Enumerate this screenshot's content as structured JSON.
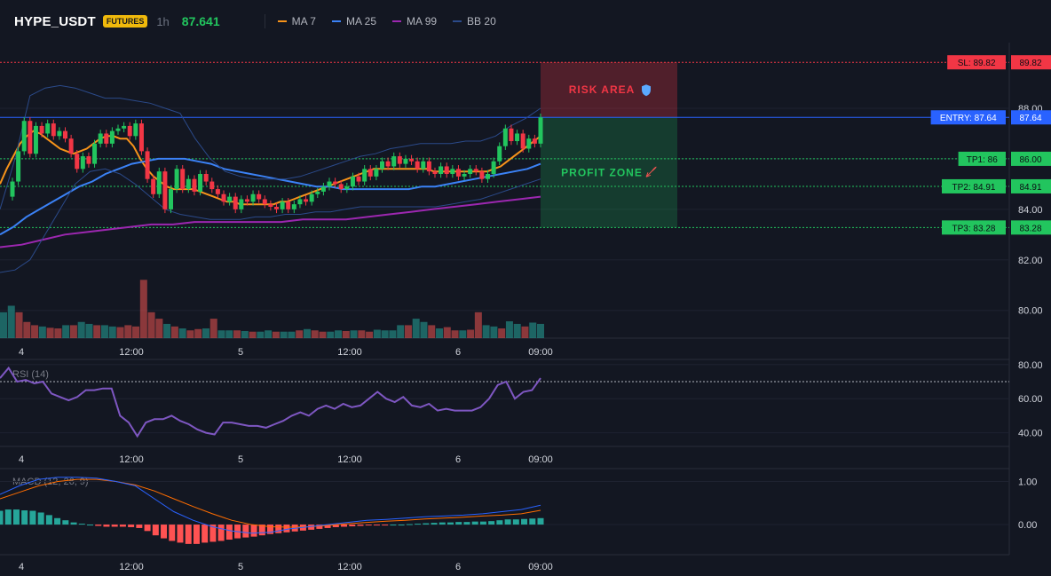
{
  "header": {
    "symbol": "HYPE_USDT",
    "badge": "FUTURES",
    "timeframe": "1h",
    "price": "87.641",
    "legend": [
      {
        "label": "MA 7",
        "color": "#f7931a"
      },
      {
        "label": "MA 25",
        "color": "#3b82f6"
      },
      {
        "label": "MA 99",
        "color": "#9c27b0"
      },
      {
        "label": "BB 20",
        "color": "#2b4a8a"
      }
    ]
  },
  "colors": {
    "background": "#131722",
    "up": "#26a69a",
    "down": "#ef5350",
    "candle_up": "#22c55e",
    "candle_down": "#f23645",
    "grid": "#1e2230",
    "axis_text": "#d1d4dc"
  },
  "chart_data": [
    {
      "type": "candlestick",
      "pane": "price",
      "time_labels": [
        "4",
        "12:00",
        "5",
        "12:00",
        "6",
        "09:00"
      ],
      "y_ticks": [
        "80.00",
        "82.00",
        "84.00",
        "86.00",
        "88.00"
      ],
      "ylim": [
        78.9,
        90.6
      ],
      "close": [
        85.1,
        86.3,
        87.5,
        86.2,
        87.3,
        87.0,
        87.4,
        86.9,
        87.1,
        86.8,
        86.2,
        85.6,
        86.1,
        85.8,
        86.6,
        87.0,
        86.6,
        87.1,
        87.2,
        87.3,
        86.9,
        87.4,
        86.3,
        85.2,
        84.6,
        85.5,
        84.0,
        84.8,
        85.6,
        84.8,
        85.2,
        84.7,
        85.4,
        85.1,
        84.8,
        84.6,
        84.3,
        84.5,
        84.0,
        84.4,
        84.3,
        84.6,
        84.4,
        84.2,
        84.1,
        84.0,
        84.3,
        84.0,
        84.2,
        84.4,
        84.3,
        84.6,
        84.7,
        84.9,
        85.1,
        85.0,
        84.8,
        84.9,
        85.3,
        85.1,
        85.6,
        85.3,
        85.6,
        85.9,
        85.7,
        86.1,
        85.8,
        86.0,
        85.9,
        85.6,
        85.9,
        85.5,
        85.4,
        85.7,
        85.4,
        85.6,
        85.3,
        85.4,
        85.6,
        85.5,
        85.2,
        85.4,
        85.9,
        86.5,
        87.2,
        86.7,
        87.0,
        86.4,
        86.8,
        86.6,
        87.64
      ],
      "indicators": [
        {
          "name": "MA 7",
          "color": "#f7931a",
          "values": [
            85.0,
            85.6,
            86.1,
            86.6,
            86.9,
            87.1,
            87.0,
            86.8,
            86.6,
            86.4,
            86.3,
            86.2,
            86.3,
            86.4,
            86.6,
            86.8,
            86.9,
            86.9,
            86.8,
            86.8,
            86.5,
            86.0,
            85.6,
            85.3,
            85.1,
            84.9,
            84.8,
            84.8,
            84.8,
            84.8,
            84.7,
            84.6,
            84.5,
            84.4,
            84.3,
            84.3,
            84.2,
            84.2,
            84.2,
            84.2,
            84.2,
            84.2,
            84.3,
            84.3,
            84.4,
            84.5,
            84.6,
            84.7,
            84.8,
            84.9,
            85.0,
            85.1,
            85.2,
            85.3,
            85.4,
            85.5,
            85.6,
            85.6,
            85.6,
            85.6,
            85.6,
            85.6,
            85.6,
            85.6,
            85.6,
            85.5,
            85.5,
            85.5,
            85.5,
            85.5,
            85.5,
            85.5,
            85.5,
            85.5,
            85.6,
            85.7,
            85.9,
            86.1,
            86.3,
            86.5,
            86.7,
            86.9
          ]
        },
        {
          "name": "MA 25",
          "color": "#3b82f6",
          "values": [
            83.0,
            83.3,
            83.7,
            84.0,
            84.3,
            84.6,
            84.9,
            85.1,
            85.4,
            85.6,
            85.8,
            85.9,
            86.0,
            86.0,
            86.0,
            85.9,
            85.8,
            85.6,
            85.5,
            85.4,
            85.3,
            85.2,
            85.1,
            85.0,
            84.9,
            84.9,
            84.8,
            84.8,
            84.8,
            84.8,
            84.8,
            84.8,
            84.9,
            84.9,
            85.0,
            85.1,
            85.2,
            85.3,
            85.4,
            85.5,
            85.6,
            85.8
          ]
        },
        {
          "name": "MA 99",
          "color": "#9c27b0",
          "values": [
            82.5,
            82.6,
            82.8,
            83.0,
            83.1,
            83.2,
            83.3,
            83.4,
            83.4,
            83.5,
            83.5,
            83.5,
            83.5,
            83.5,
            83.6,
            83.6,
            83.6,
            83.7,
            83.8,
            83.9,
            84.0,
            84.1,
            84.2,
            84.3,
            84.4,
            84.5
          ]
        },
        {
          "name": "BB 20 upper",
          "color": "#2b4a8a",
          "values": [
            84.0,
            86.0,
            88.5,
            88.8,
            88.9,
            88.8,
            88.6,
            88.4,
            88.4,
            88.3,
            88.2,
            88.0,
            87.8,
            86.8,
            86.0,
            85.5,
            85.3,
            85.2,
            85.2,
            85.2,
            85.3,
            85.5,
            85.7,
            85.9,
            86.1,
            86.2,
            86.4,
            86.5,
            86.6,
            86.6,
            86.6,
            86.7,
            86.7,
            86.9,
            87.3,
            87.6,
            88.0
          ]
        },
        {
          "name": "BB 20 lower",
          "color": "#2b4a8a",
          "values": [
            81.5,
            81.6,
            82.0,
            83.0,
            84.0,
            85.0,
            85.5,
            85.6,
            85.4,
            85.0,
            84.5,
            84.0,
            83.8,
            83.7,
            83.6,
            83.6,
            83.6,
            83.7,
            83.7,
            83.8,
            83.8,
            83.9,
            83.9,
            84.0,
            84.1,
            84.1,
            84.1,
            84.1,
            84.1,
            84.1,
            84.2,
            84.3,
            84.4,
            84.6,
            84.8,
            85.0,
            85.2
          ]
        }
      ],
      "levels": [
        {
          "label": "SL: 89.82",
          "value": 89.82,
          "price_tag": "89.82",
          "color": "#f23645"
        },
        {
          "label": "ENTRY: 87.64",
          "value": 87.64,
          "price_tag": "87.64",
          "color": "#2962ff"
        },
        {
          "label": "TP1: 86",
          "value": 86.0,
          "price_tag": "86.00",
          "color": "#22c55e"
        },
        {
          "label": "TP2: 84.91",
          "value": 84.91,
          "price_tag": "84.91",
          "color": "#22c55e"
        },
        {
          "label": "TP3: 83.28",
          "value": 83.28,
          "price_tag": "83.28",
          "color": "#22c55e"
        }
      ],
      "zones": [
        {
          "label": "RISK AREA",
          "icon": "shield-icon",
          "from": 87.64,
          "to": 89.82,
          "color": "#f23645"
        },
        {
          "label": "PROFIT ZONE",
          "icon": "rocket-icon",
          "from": 83.28,
          "to": 87.64,
          "color": "#22c55e"
        }
      ],
      "volume": {
        "values": [
          0.4,
          0.5,
          0.4,
          0.25,
          0.2,
          0.18,
          0.16,
          0.15,
          0.2,
          0.2,
          0.25,
          0.22,
          0.2,
          0.2,
          0.18,
          0.17,
          0.2,
          0.18,
          0.9,
          0.4,
          0.3,
          0.22,
          0.18,
          0.15,
          0.12,
          0.14,
          0.15,
          0.3,
          0.12,
          0.12,
          0.12,
          0.11,
          0.1,
          0.1,
          0.12,
          0.1,
          0.1,
          0.1,
          0.12,
          0.14,
          0.12,
          0.1,
          0.1,
          0.12,
          0.11,
          0.12,
          0.12,
          0.1,
          0.13,
          0.12,
          0.12,
          0.2,
          0.2,
          0.3,
          0.25,
          0.2,
          0.15,
          0.17,
          0.12,
          0.12,
          0.13,
          0.4,
          0.2,
          0.18,
          0.15,
          0.26,
          0.22,
          0.18,
          0.24,
          0.22
        ],
        "up": [
          1,
          1,
          0,
          0,
          0,
          1,
          0,
          0,
          1,
          0,
          1,
          1,
          0,
          1,
          1,
          0,
          0,
          0,
          0,
          0,
          0,
          1,
          0,
          1,
          0,
          0,
          1,
          0,
          1,
          1,
          0,
          1,
          0,
          1,
          1,
          0,
          1,
          1,
          0,
          1,
          0,
          0,
          1,
          1,
          0,
          1,
          0,
          0,
          1,
          1,
          1,
          1,
          0,
          1,
          1,
          0,
          1,
          0,
          0,
          1,
          0,
          0,
          1,
          1,
          0,
          1,
          1,
          0,
          1,
          1
        ]
      }
    },
    {
      "type": "line",
      "pane": "rsi",
      "title": "RSI (14)",
      "y_ticks": [
        "40.00",
        "60.00",
        "80.00"
      ],
      "ylim": [
        32,
        83
      ],
      "overbought": 70,
      "series": [
        {
          "color": "#7e57c2",
          "values": [
            72,
            78,
            70,
            71,
            69,
            70,
            63,
            61,
            59,
            61,
            65,
            65,
            66,
            66,
            50,
            46,
            38,
            46,
            48,
            48,
            50,
            47,
            45,
            42,
            40,
            39,
            46,
            46,
            45,
            44,
            44,
            43,
            45,
            47,
            50,
            52,
            50,
            54,
            56,
            54,
            57,
            55,
            56,
            60,
            64,
            60,
            58,
            61,
            56,
            55,
            57,
            53,
            54,
            53,
            53,
            53,
            55,
            60,
            68,
            70,
            60,
            64,
            65,
            72
          ]
        }
      ]
    },
    {
      "type": "line+bar",
      "pane": "macd",
      "title": "MACD (12, 26, 9)",
      "y_ticks": [
        "0.00",
        "1.00"
      ],
      "ylim": [
        -0.7,
        1.3
      ],
      "macd": [
        0.7,
        0.9,
        1.05,
        1.1,
        1.1,
        1.08,
        1.0,
        0.9,
        0.6,
        0.3,
        0.1,
        -0.05,
        -0.15,
        -0.2,
        -0.18,
        -0.1,
        -0.05,
        0.0,
        0.05,
        0.1,
        0.12,
        0.15,
        0.18,
        0.2,
        0.22,
        0.25,
        0.3,
        0.35,
        0.45
      ],
      "signal": [
        0.6,
        0.75,
        0.9,
        1.0,
        1.05,
        1.05,
        1.0,
        0.92,
        0.78,
        0.6,
        0.42,
        0.25,
        0.1,
        0.0,
        -0.05,
        -0.06,
        -0.05,
        -0.02,
        0.02,
        0.05,
        0.08,
        0.1,
        0.13,
        0.15,
        0.17,
        0.2,
        0.22,
        0.25,
        0.33
      ],
      "histogram": [
        0.32,
        0.35,
        0.35,
        0.33,
        0.32,
        0.28,
        0.22,
        0.15,
        0.1,
        0.05,
        0.02,
        0.0,
        -0.03,
        -0.05,
        -0.05,
        -0.05,
        -0.06,
        -0.08,
        -0.15,
        -0.25,
        -0.32,
        -0.38,
        -0.42,
        -0.45,
        -0.45,
        -0.42,
        -0.4,
        -0.38,
        -0.35,
        -0.32,
        -0.3,
        -0.28,
        -0.25,
        -0.22,
        -0.2,
        -0.18,
        -0.16,
        -0.14,
        -0.12,
        -0.1,
        -0.08,
        -0.06,
        -0.05,
        -0.04,
        -0.03,
        -0.02,
        -0.02,
        -0.01,
        0.0,
        0.0,
        0.01,
        0.02,
        0.03,
        0.04,
        0.05,
        0.05,
        0.06,
        0.06,
        0.07,
        0.07,
        0.08,
        0.1,
        0.12,
        0.12,
        0.13,
        0.14,
        0.15
      ]
    }
  ]
}
